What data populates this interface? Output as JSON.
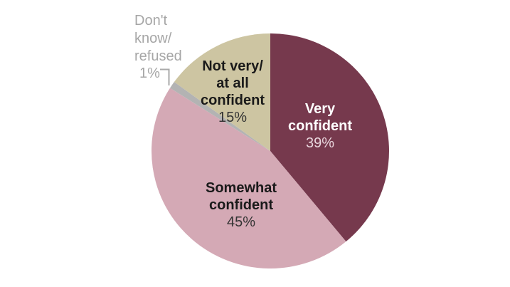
{
  "chart_data": {
    "type": "pie",
    "title": "",
    "start_angle_deg": 0,
    "direction": "clockwise",
    "total": 100,
    "legend_position": "labels-on-slices",
    "callout_color": "#a9a9a9",
    "segments": [
      {
        "id": "very-confident",
        "label": "Very confident",
        "value": 39,
        "display_value": "39%",
        "color": "#76394d",
        "label_color": "#ffffff",
        "value_color": "#e9d6dd"
      },
      {
        "id": "somewhat-confident",
        "label": "Somewhat confident",
        "value": 45,
        "display_value": "45%",
        "color": "#d4a9b5",
        "label_color": "#1a1a1a",
        "value_color": "#333333"
      },
      {
        "id": "dont-know-refused",
        "label": "Don't know/refused",
        "value": 1,
        "display_value": "1%",
        "color": "#b3b3b3",
        "label_color": "#a6a6a6",
        "value_color": "#a6a6a6"
      },
      {
        "id": "not-very-at-all-confident",
        "label": "Not very/at all confident",
        "value": 15,
        "display_value": "15%",
        "color": "#cdc5a2",
        "label_color": "#1a1a1a",
        "value_color": "#333333"
      }
    ]
  },
  "labels": {
    "very": {
      "line1": "Very",
      "line2": "confident",
      "value": "39%"
    },
    "somewhat": {
      "line1": "Somewhat",
      "line2": "confident",
      "value": "45%"
    },
    "not_very": {
      "line1": "Not very/",
      "line2": "at all",
      "line3": "confident",
      "value": "15%"
    },
    "dont_know": {
      "line1": "Don't",
      "line2": "know/",
      "line3": "refused",
      "value": "1%"
    }
  }
}
